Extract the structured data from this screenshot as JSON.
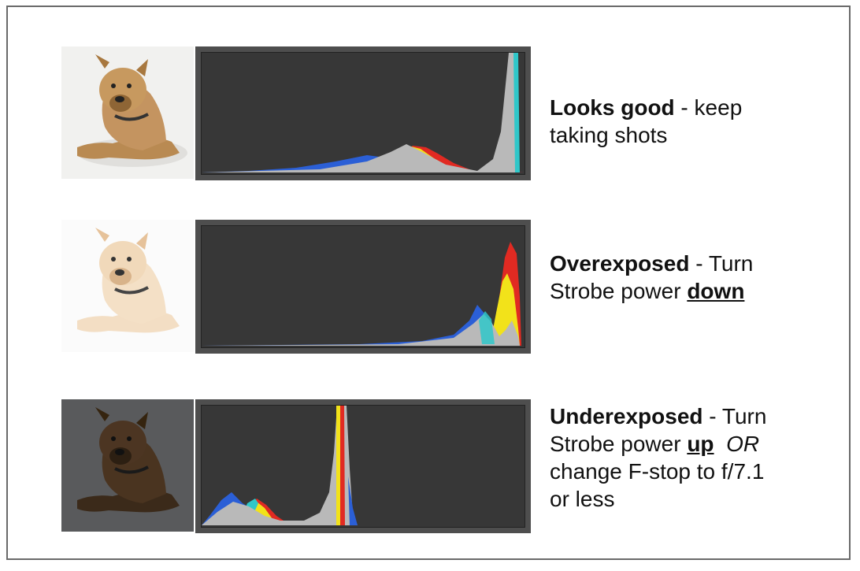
{
  "rows": [
    {
      "id": "good",
      "title": "Looks good",
      "sep": " - ",
      "line1_rest": "keep",
      "line2": "taking shots"
    },
    {
      "id": "over",
      "title": "Overexposed",
      "sep": " - ",
      "line1_rest": "Turn",
      "line2_pre": "Strobe power ",
      "line2_emph": "down"
    },
    {
      "id": "under",
      "title": "Underexposed",
      "sep": " - ",
      "line1_rest": "Turn",
      "line2_pre": "Strobe power ",
      "line2_emph": "up",
      "line2_or": "OR",
      "line3": "change F-stop to f/7.1",
      "line4": "or less"
    }
  ],
  "colors": {
    "histogram_bg": "#373737",
    "histogram_frame": "#4e4e4e",
    "luminance": "#b9b9b9",
    "blue": "#2b5fd6",
    "cyan": "#2fc7c9",
    "green": "#39c24a",
    "yellow": "#f2e21a",
    "red": "#e12a22"
  }
}
